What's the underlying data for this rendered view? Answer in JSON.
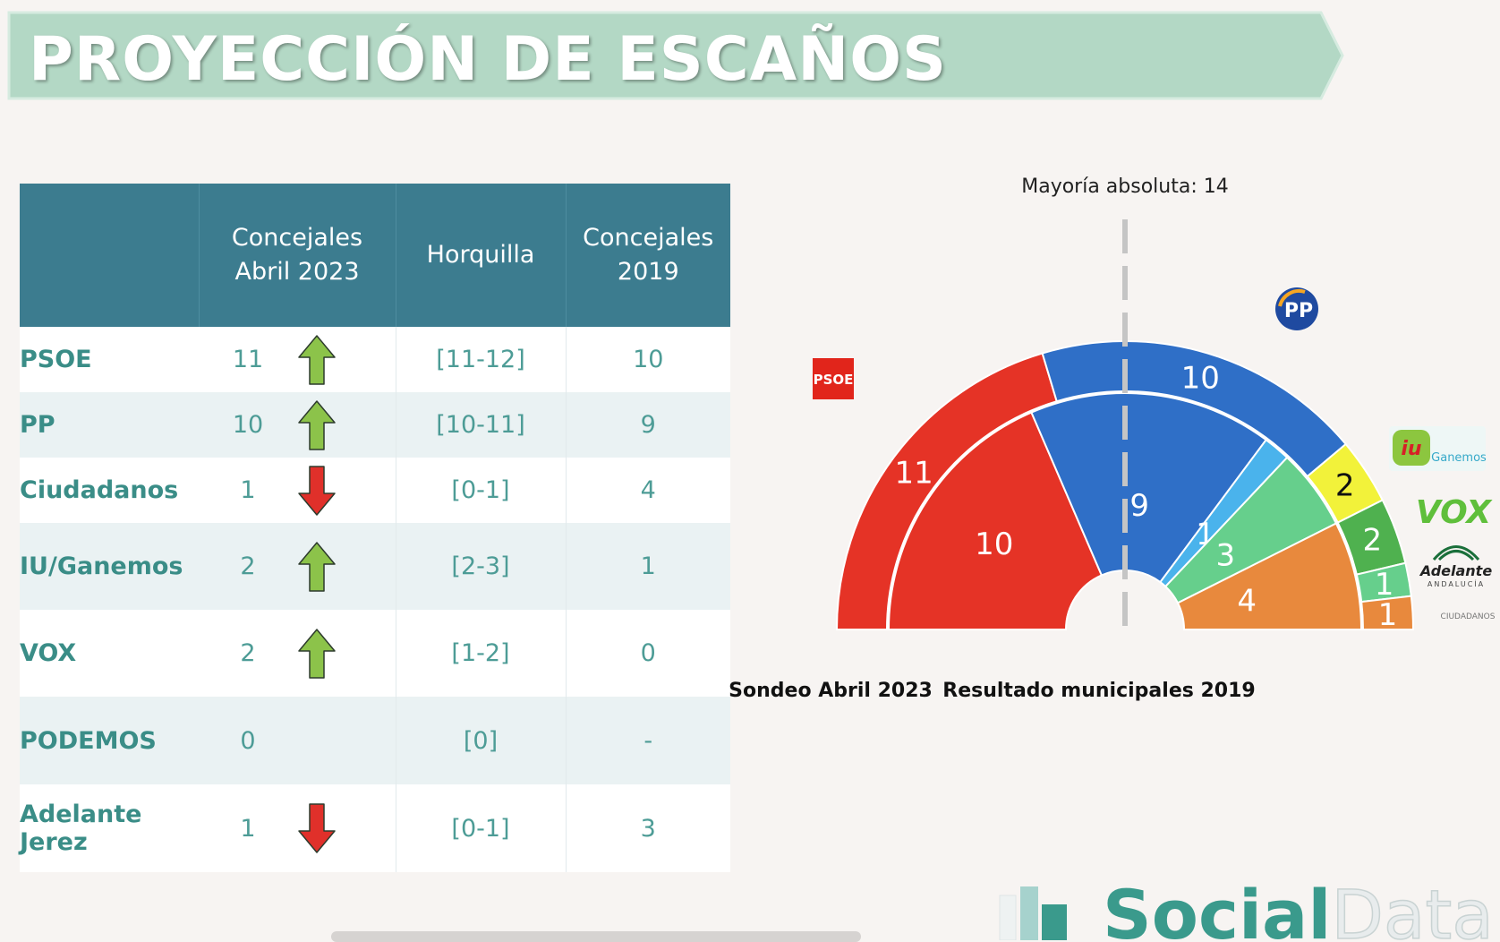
{
  "banner": {
    "title": "PROYECCIÓN DE ESCAÑOS",
    "color": "#b3d8c5",
    "border": "#d6ebe0"
  },
  "table": {
    "headers": [
      "",
      "Concejales\nAbril 2023",
      "Horquilla",
      "Concejales\n2019"
    ],
    "rows": [
      {
        "party": "PSOE",
        "seats2023": "11",
        "trend": "up",
        "range": "[11-12]",
        "seats2019": "10"
      },
      {
        "party": "PP",
        "seats2023": "10",
        "trend": "up",
        "range": "[10-11]",
        "seats2019": "9"
      },
      {
        "party": "Ciudadanos",
        "seats2023": "1",
        "trend": "down",
        "range": "[0-1]",
        "seats2019": "4"
      },
      {
        "party": "IU/Ganemos",
        "seats2023": "2",
        "trend": "up",
        "range": "[2-3]",
        "seats2019": "1"
      },
      {
        "party": "VOX",
        "seats2023": "2",
        "trend": "up",
        "range": "[1-2]",
        "seats2019": "0"
      },
      {
        "party": "PODEMOS",
        "seats2023": "0",
        "trend": "none",
        "range": "[0]",
        "seats2019": "-"
      },
      {
        "party": "Adelante Jerez",
        "seats2023": "1",
        "trend": "down",
        "range": "[0-1]",
        "seats2019": "3"
      }
    ],
    "colors": {
      "header_bg": "#3c7c8f",
      "text": "#3a8d87",
      "up": "#8cc34a",
      "down": "#e0302a"
    }
  },
  "chart": {
    "majority_label": "Mayoría absoluta: 14",
    "outer_ring_label": "Sondeo Abril 2023",
    "inner_ring_label": "Resultado municipales 2019",
    "logos": {
      "psoe": "PSOE",
      "pp": "PP",
      "iu": "iu",
      "ganemos": "Ganemos",
      "vox": "VOX",
      "adelante": "Adelante",
      "adelante_sub": "ANDALUCÍA",
      "ciudadanos": "CIUDADANOS"
    }
  },
  "chart_data": {
    "type": "pie",
    "subtype": "double-ring parliament hemicycle",
    "total_seats": 27,
    "majority": 14,
    "series": [
      {
        "name": "Sondeo Abril 2023",
        "ring": "outer",
        "slices": [
          {
            "party": "PSOE",
            "value": 11,
            "color": "#e53326"
          },
          {
            "party": "PP",
            "value": 10,
            "color": "#2f6fc7"
          },
          {
            "party": "IU/Ganemos",
            "value": 2,
            "color": "#f2f23a"
          },
          {
            "party": "VOX",
            "value": 2,
            "color": "#4fb14f"
          },
          {
            "party": "Adelante",
            "value": 1,
            "color": "#66cf8c"
          },
          {
            "party": "Ciudadanos",
            "value": 1,
            "color": "#e8893d"
          }
        ]
      },
      {
        "name": "Resultado municipales 2019",
        "ring": "inner",
        "slices": [
          {
            "party": "PSOE",
            "value": 10,
            "color": "#e53326"
          },
          {
            "party": "PP",
            "value": 9,
            "color": "#2f6fc7"
          },
          {
            "party": "IU/Ganemos",
            "value": 1,
            "color": "#4ab3ec"
          },
          {
            "party": "Adelante",
            "value": 3,
            "color": "#66cf8c"
          },
          {
            "party": "Ciudadanos",
            "value": 4,
            "color": "#e8893d"
          }
        ]
      }
    ]
  },
  "brand": {
    "name_bold": "Social",
    "name_light": "Data",
    "color": "#3a9a8c",
    "light_color": "#e8eced"
  }
}
